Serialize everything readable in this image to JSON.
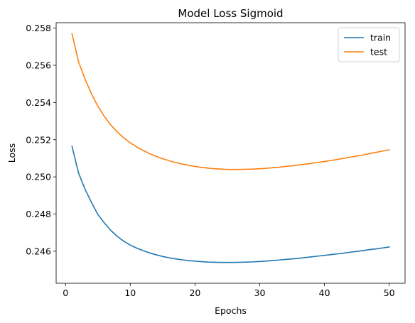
{
  "chart_data": {
    "type": "line",
    "title": "Model Loss Sigmoid",
    "xlabel": "Epochs",
    "ylabel": "Loss",
    "xlim": [
      -1.45,
      52.45
    ],
    "ylim": [
      0.24428,
      0.25829
    ],
    "xticks": [
      0,
      10,
      20,
      30,
      40,
      50
    ],
    "yticks": [
      0.246,
      0.248,
      0.25,
      0.252,
      0.254,
      0.256,
      0.258
    ],
    "ytick_labels": [
      "0.246",
      "0.248",
      "0.250",
      "0.252",
      "0.254",
      "0.256",
      "0.258"
    ],
    "grid": false,
    "legend_position": "top-right",
    "series": [
      {
        "name": "train",
        "color": "#1f77b4",
        "x": [
          1,
          2,
          3,
          4,
          5,
          6,
          7,
          8,
          9,
          10,
          11,
          12,
          13,
          14,
          15,
          16,
          17,
          18,
          19,
          20,
          21,
          22,
          23,
          24,
          25,
          26,
          27,
          28,
          29,
          30,
          31,
          32,
          33,
          34,
          35,
          36,
          37,
          38,
          39,
          40,
          41,
          42,
          43,
          44,
          45,
          46,
          47,
          48,
          49,
          50
        ],
        "values": [
          0.25165,
          0.25022,
          0.24935,
          0.24863,
          0.24798,
          0.24752,
          0.24712,
          0.2468,
          0.24654,
          0.24633,
          0.24617,
          0.24603,
          0.24591,
          0.24581,
          0.24572,
          0.24565,
          0.24559,
          0.24554,
          0.2455,
          0.24547,
          0.24544,
          0.24542,
          0.24541,
          0.2454,
          0.2454,
          0.2454,
          0.24541,
          0.24542,
          0.24543,
          0.24545,
          0.24547,
          0.2455,
          0.24553,
          0.24556,
          0.24559,
          0.24562,
          0.24566,
          0.2457,
          0.24574,
          0.24578,
          0.24582,
          0.24586,
          0.2459,
          0.24595,
          0.24599,
          0.24604,
          0.24609,
          0.24613,
          0.24618,
          0.24623
        ]
      },
      {
        "name": "test",
        "color": "#ff7f0e",
        "x": [
          1,
          2,
          3,
          4,
          5,
          6,
          7,
          8,
          9,
          10,
          11,
          12,
          13,
          14,
          15,
          16,
          17,
          18,
          19,
          20,
          21,
          22,
          23,
          24,
          25,
          26,
          27,
          28,
          29,
          30,
          31,
          32,
          33,
          34,
          35,
          36,
          37,
          38,
          39,
          40,
          41,
          42,
          43,
          44,
          45,
          46,
          47,
          48,
          49,
          50
        ],
        "values": [
          0.2577,
          0.2562,
          0.25527,
          0.25447,
          0.2538,
          0.25325,
          0.25279,
          0.25241,
          0.2521,
          0.25183,
          0.25161,
          0.25142,
          0.25125,
          0.2511,
          0.25098,
          0.25087,
          0.25077,
          0.25069,
          0.25062,
          0.25056,
          0.25051,
          0.25047,
          0.25044,
          0.25042,
          0.2504,
          0.2504,
          0.2504,
          0.25041,
          0.25042,
          0.25044,
          0.25046,
          0.25049,
          0.25052,
          0.25056,
          0.2506,
          0.25064,
          0.25068,
          0.25073,
          0.25078,
          0.25083,
          0.25088,
          0.25094,
          0.251,
          0.25106,
          0.25112,
          0.25118,
          0.25125,
          0.25132,
          0.25139,
          0.25146
        ]
      }
    ]
  }
}
